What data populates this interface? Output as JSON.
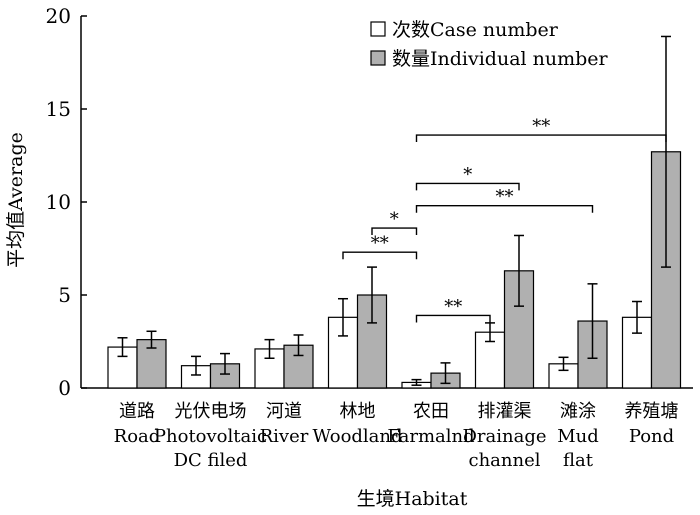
{
  "chart_data": {
    "type": "bar",
    "ylabel": "平均值Average",
    "xlabel": "生境Habitat",
    "ylim": [
      0,
      20
    ],
    "yticks": [
      0,
      5,
      10,
      15,
      20
    ],
    "categories": [
      {
        "cn": "道路",
        "en": [
          "Road"
        ]
      },
      {
        "cn": "光伏电场",
        "en": [
          "Photovoltaic",
          "DC filed"
        ]
      },
      {
        "cn": "河道",
        "en": [
          "River"
        ]
      },
      {
        "cn": "林地",
        "en": [
          "Woodland"
        ]
      },
      {
        "cn": "农田",
        "en": [
          "Farmalnd"
        ]
      },
      {
        "cn": "排灌渠",
        "en": [
          "Drainage",
          "channel"
        ]
      },
      {
        "cn": "滩涂",
        "en": [
          "Mud",
          "flat"
        ]
      },
      {
        "cn": "养殖塘",
        "en": [
          "Pond"
        ]
      }
    ],
    "series": [
      {
        "name": "次数Case number",
        "color": "#ffffff",
        "values": [
          2.2,
          1.2,
          2.1,
          3.8,
          0.3,
          3.0,
          1.3,
          3.8
        ],
        "errors": [
          0.5,
          0.5,
          0.5,
          1.0,
          0.15,
          0.5,
          0.35,
          0.85
        ]
      },
      {
        "name": "数量Individual number",
        "color": "#b0b0b0",
        "values": [
          2.6,
          1.3,
          2.3,
          5.0,
          0.8,
          6.3,
          3.6,
          12.7
        ],
        "errors": [
          0.45,
          0.55,
          0.55,
          1.5,
          0.55,
          1.9,
          2.0,
          6.2
        ]
      }
    ],
    "significance": [
      {
        "label": "**",
        "from": [
          3,
          0
        ],
        "to": [
          4,
          0
        ],
        "y": 7.3
      },
      {
        "label": "*",
        "from": [
          3,
          1
        ],
        "to": [
          4,
          0
        ],
        "y": 8.6
      },
      {
        "label": "**",
        "from": [
          4,
          0
        ],
        "to": [
          5,
          0
        ],
        "y": 3.9
      },
      {
        "label": "*",
        "from": [
          4,
          0
        ],
        "to": [
          5,
          1
        ],
        "y": 11.0
      },
      {
        "label": "**",
        "from": [
          4,
          0
        ],
        "to": [
          6,
          1
        ],
        "y": 9.8
      },
      {
        "label": "**",
        "from": [
          4,
          0
        ],
        "to": [
          7,
          1
        ],
        "y": 13.6
      }
    ]
  }
}
